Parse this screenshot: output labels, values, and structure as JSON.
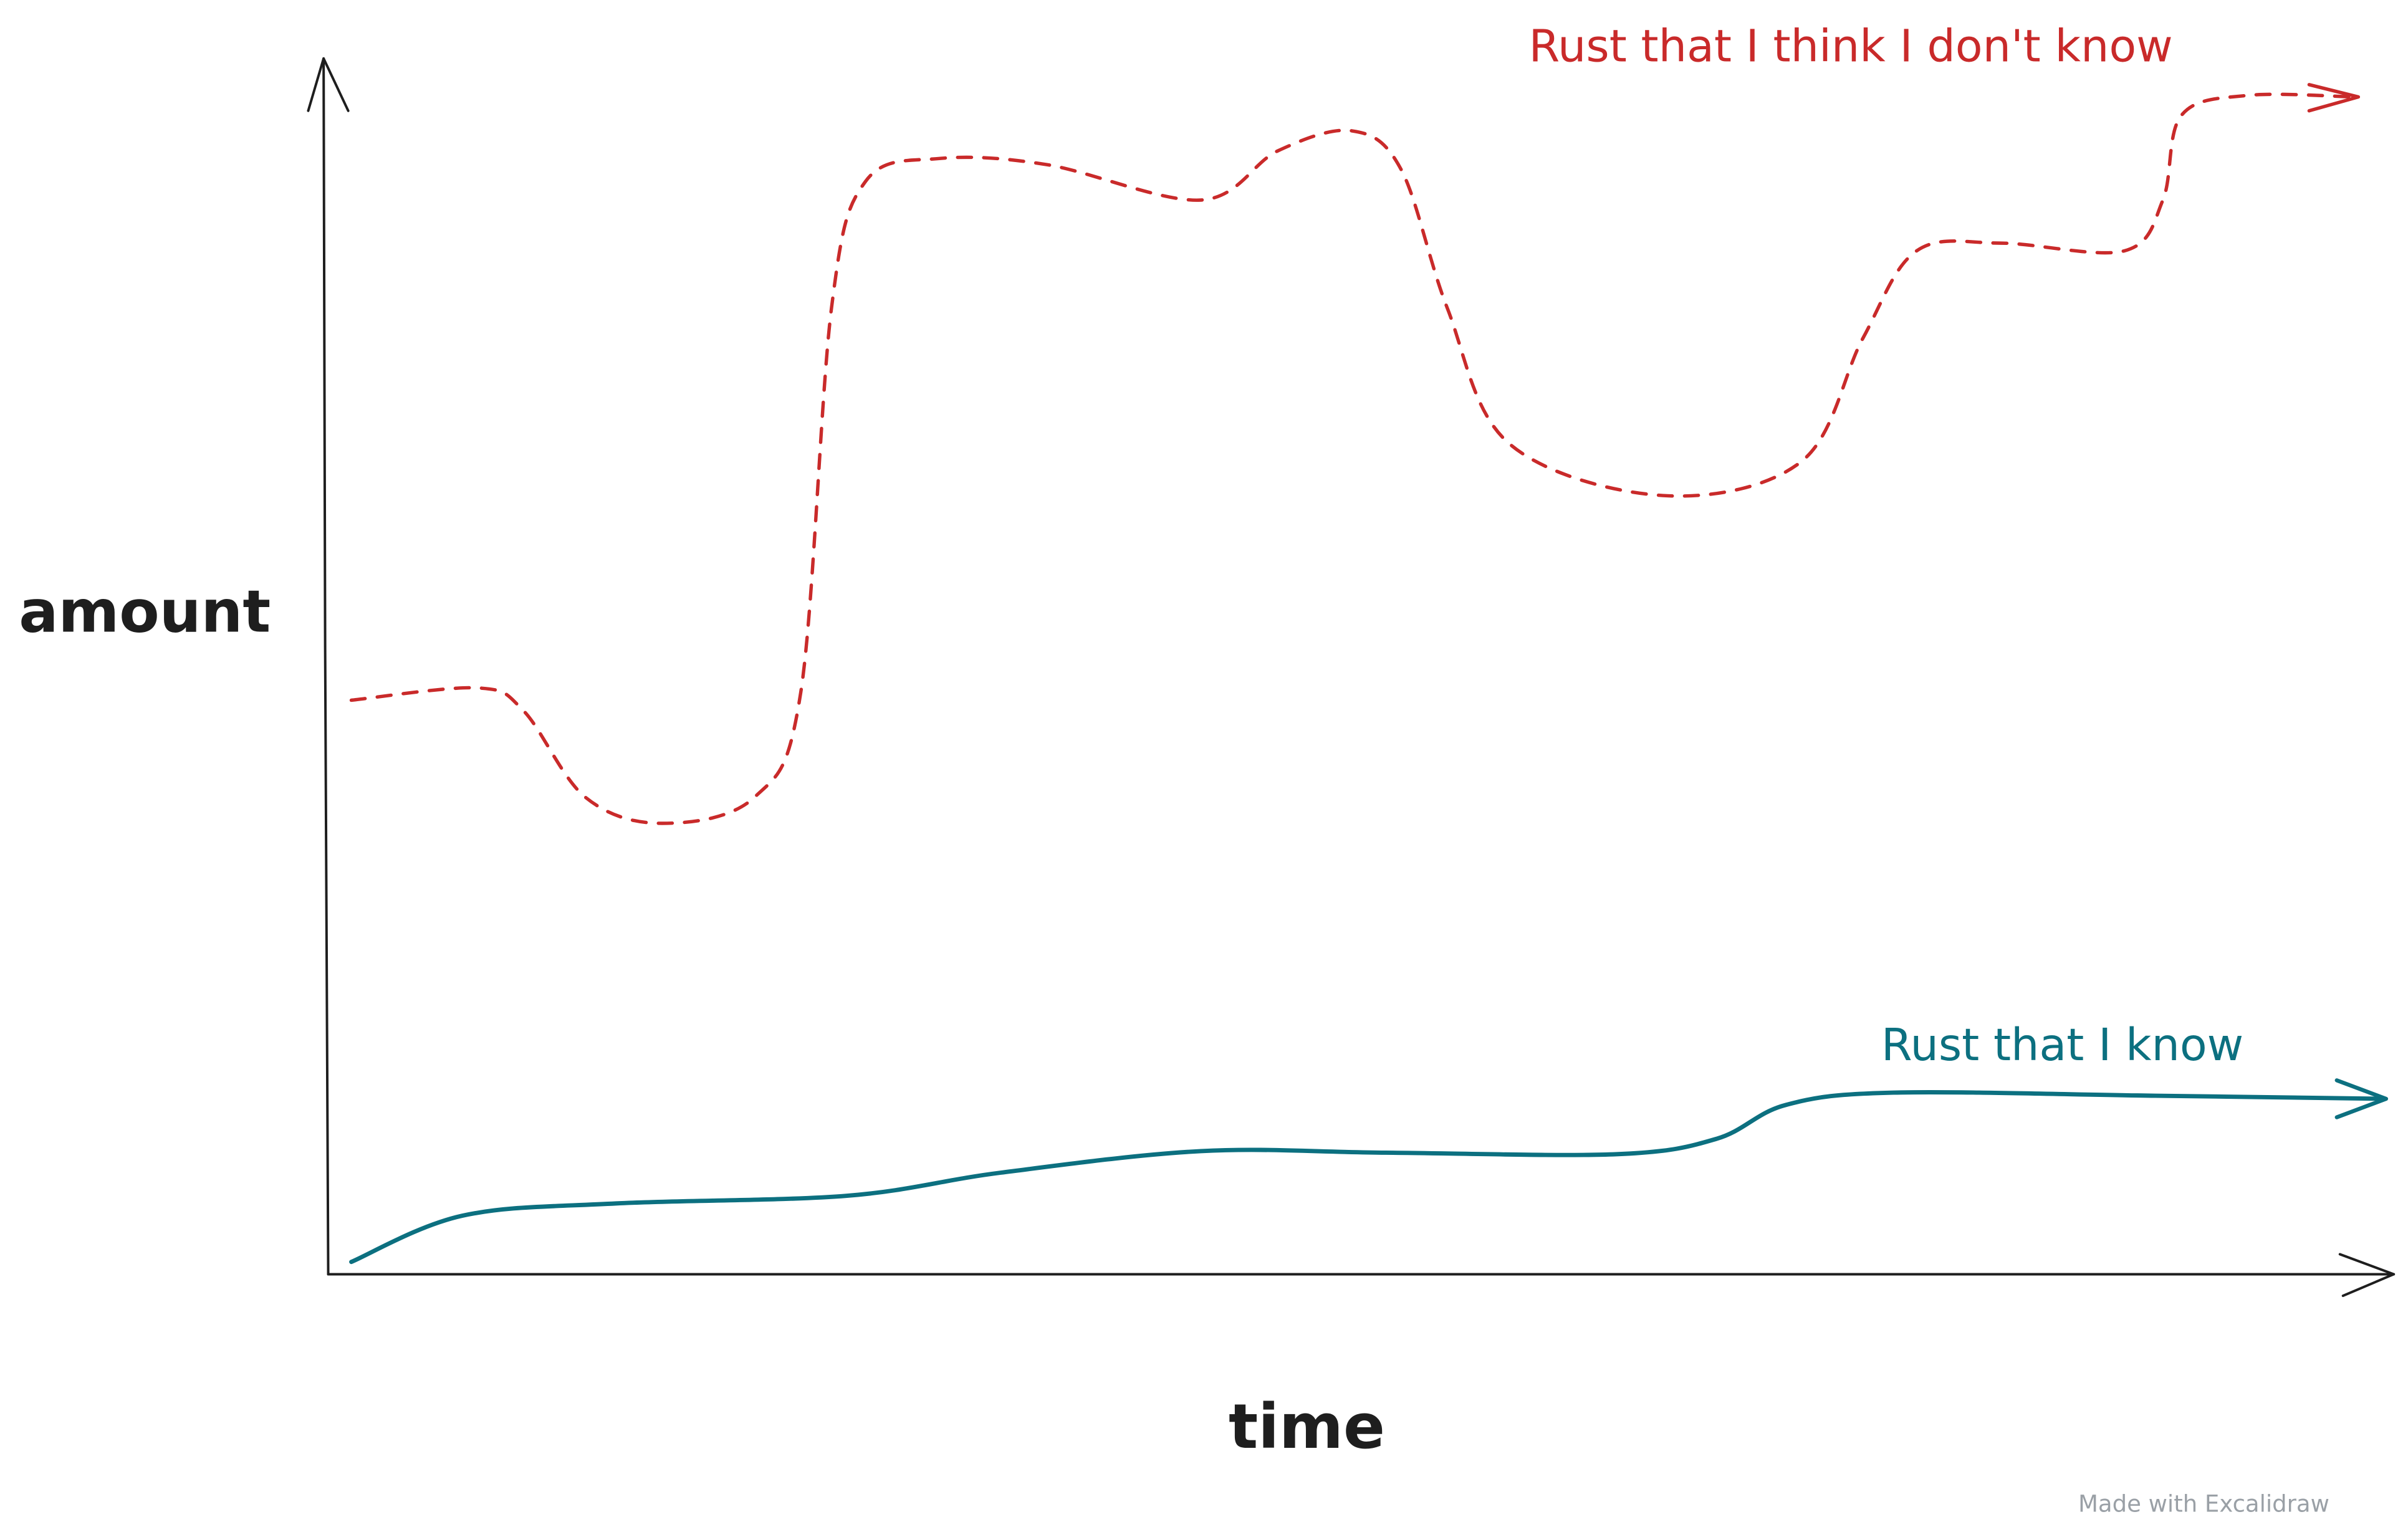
{
  "axes": {
    "y_label": "amount",
    "x_label": "time"
  },
  "curves": [
    {
      "label": "Rust that I think I don't know"
    },
    {
      "label": "Rust that I know"
    }
  ],
  "footer": "Made with Excalidraw"
}
